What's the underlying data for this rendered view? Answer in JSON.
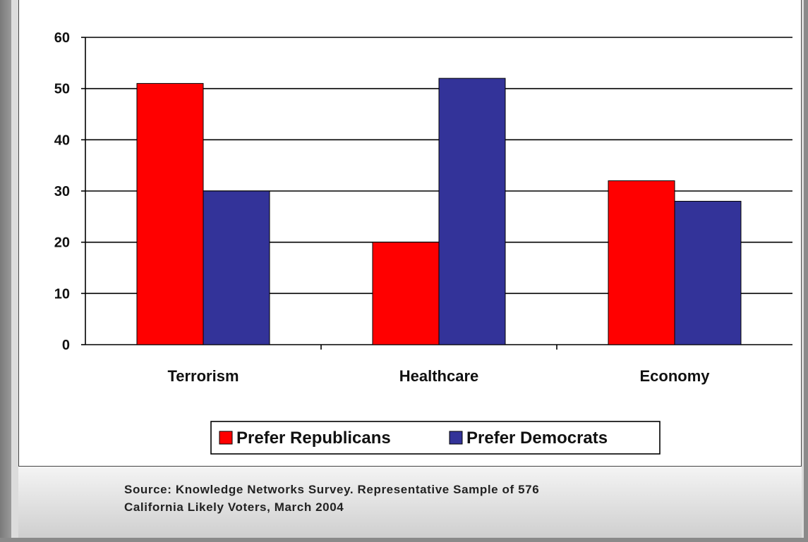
{
  "chart_data": {
    "type": "bar",
    "categories": [
      "Terrorism",
      "Healthcare",
      "Economy"
    ],
    "series": [
      {
        "name": "Prefer Republicans",
        "values": [
          51,
          20,
          32
        ],
        "color": "#ff0000"
      },
      {
        "name": "Prefer Democrats",
        "values": [
          30,
          52,
          28
        ],
        "color": "#333399"
      }
    ],
    "ylim": [
      0,
      60
    ],
    "yticks": [
      0,
      10,
      20,
      30,
      40,
      50,
      60
    ],
    "grid": true,
    "legend_position": "bottom",
    "title": "",
    "xlabel": "",
    "ylabel": ""
  },
  "caption": {
    "line1": "Source: Knowledge Networks Survey.  Representative Sample of 576",
    "line2": "California Likely Voters, March 2004"
  }
}
